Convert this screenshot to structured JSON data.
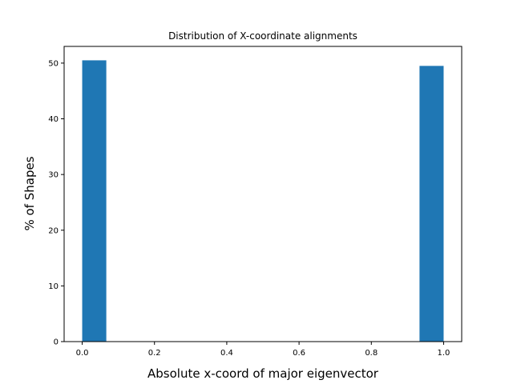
{
  "chart_data": {
    "type": "bar",
    "title": "Distribution of X-coordinate alignments",
    "xlabel": "Absolute x-coord of major eigenvector",
    "ylabel": "% of Shapes",
    "bins": [
      {
        "x_start": 0.0,
        "x_end": 0.0667,
        "value": 50.5
      },
      {
        "x_start": 0.9333,
        "x_end": 1.0,
        "value": 49.5
      }
    ],
    "xlim": [
      -0.05,
      1.05
    ],
    "ylim": [
      0,
      53
    ],
    "xticks": [
      0.0,
      0.2,
      0.4,
      0.6,
      0.8,
      1.0
    ],
    "xtick_labels": [
      "0.0",
      "0.2",
      "0.4",
      "0.6",
      "0.8",
      "1.0"
    ],
    "yticks": [
      0,
      10,
      20,
      30,
      40,
      50
    ],
    "ytick_labels": [
      "0",
      "10",
      "20",
      "30",
      "40",
      "50"
    ],
    "grid": false,
    "bar_color": "#1f77b4"
  }
}
